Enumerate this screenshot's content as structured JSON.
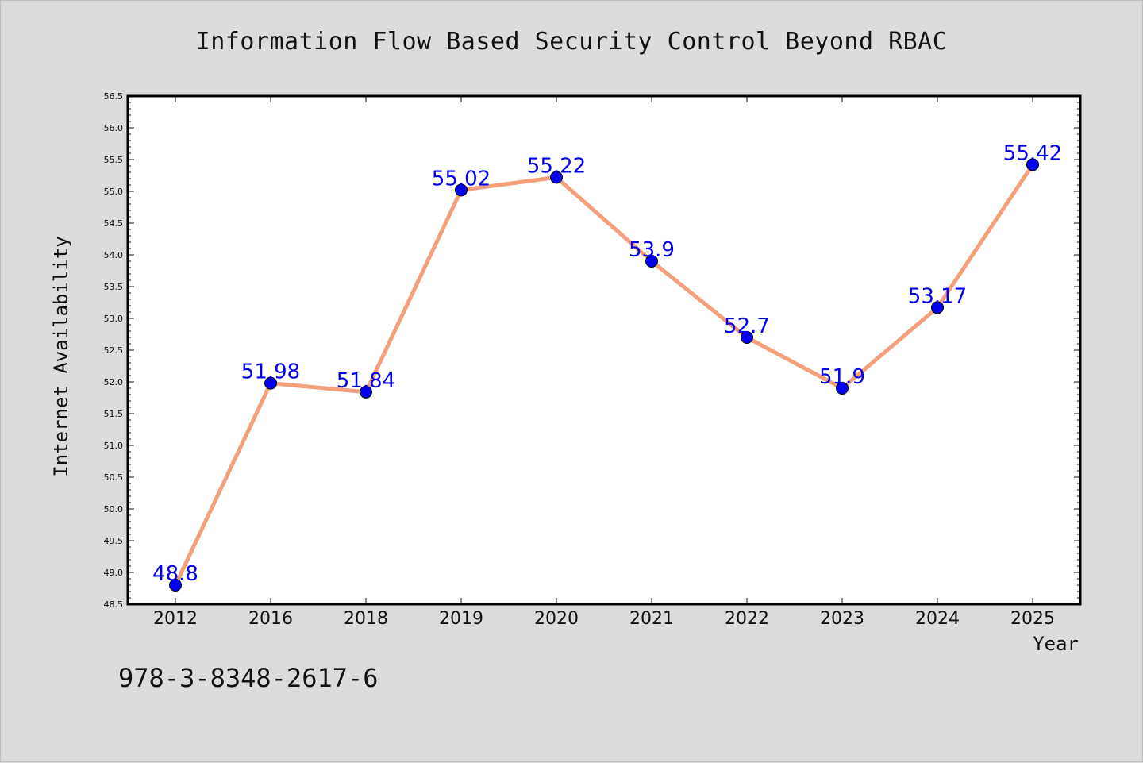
{
  "chart_data": {
    "type": "line",
    "title": "Information Flow Based Security Control Beyond RBAC",
    "xlabel": "Year",
    "ylabel": "Internet Availability",
    "categories": [
      "2012",
      "2016",
      "2018",
      "2019",
      "2020",
      "2021",
      "2022",
      "2023",
      "2024",
      "2025"
    ],
    "series": [
      {
        "values": [
          48.8,
          51.98,
          51.84,
          55.02,
          55.22,
          53.9,
          52.7,
          51.9,
          53.17,
          55.42
        ],
        "labels": [
          "48.8",
          "51.98",
          "51.84",
          "55.02",
          "55.22",
          "53.9",
          "52.7",
          "51.9",
          "53.17",
          "55.42"
        ],
        "line_color": "#f4a07c",
        "marker_color": "#0000ee",
        "label_color": "#0000ee"
      }
    ],
    "ylim": [
      48.5,
      56.5
    ],
    "yticks": [
      "48.5",
      "49.0",
      "49.5",
      "50.0",
      "50.5",
      "51.0",
      "51.5",
      "52.0",
      "52.5",
      "53.0",
      "53.5",
      "54.0",
      "54.5",
      "55.0",
      "55.5",
      "56.0",
      "56.5"
    ],
    "grid": false,
    "legend": "none"
  },
  "footer": {
    "code": "978-3-8348-2617-6"
  }
}
